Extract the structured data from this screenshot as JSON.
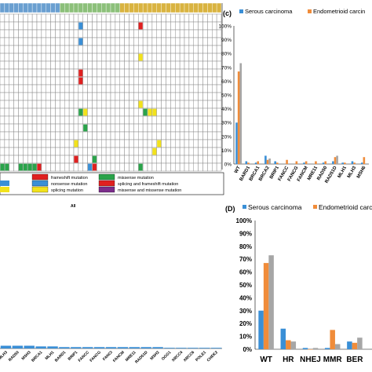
{
  "colors": {
    "serous": "#3a8fd6",
    "endometrioid": "#f08c3a",
    "wt_third": "#a6a6a6",
    "red": "#e02020",
    "green": "#2aa34a",
    "blue": "#3a8fd6",
    "yellow": "#f2e21c",
    "purple": "#7b2d8b",
    "bar_top_blue": "#6a9fd0",
    "bar_top_green": "#8cc07a",
    "bar_top_gold": "#d9b340"
  },
  "legend": {
    "items": [
      {
        "label": "frameshift mutation",
        "color": "red"
      },
      {
        "label": "missense mutation",
        "color": "green"
      },
      {
        "label": "nonsense mutation",
        "color": "blue"
      },
      {
        "label": "splicing and frameshift mutation",
        "color": "red"
      },
      {
        "label": "splicing mutation",
        "color": "yellow"
      },
      {
        "label": "missense and missense mutation",
        "color": "purple"
      }
    ]
  },
  "heatmap_marks": [
    {
      "col": 17,
      "row": 1,
      "color": "blue"
    },
    {
      "col": 17,
      "row": 3,
      "color": "blue"
    },
    {
      "col": 30,
      "row": 1,
      "color": "red"
    },
    {
      "col": 30,
      "row": 5,
      "color": "yellow"
    },
    {
      "col": 17,
      "row": 7,
      "color": "red"
    },
    {
      "col": 17,
      "row": 8,
      "color": "red"
    },
    {
      "col": 17,
      "row": 12,
      "color": "green"
    },
    {
      "col": 18,
      "row": 12,
      "color": "yellow"
    },
    {
      "col": 31,
      "row": 12,
      "color": "green"
    },
    {
      "col": 32,
      "row": 12,
      "color": "yellow"
    },
    {
      "col": 33,
      "row": 12,
      "color": "yellow"
    },
    {
      "col": 30,
      "row": 11,
      "color": "yellow"
    },
    {
      "col": 18,
      "row": 14,
      "color": "green"
    },
    {
      "col": 16,
      "row": 16,
      "color": "yellow"
    },
    {
      "col": 34,
      "row": 16,
      "color": "yellow"
    },
    {
      "col": 33,
      "row": 17,
      "color": "yellow"
    },
    {
      "col": 16,
      "row": 18,
      "color": "red"
    },
    {
      "col": 19,
      "row": 19,
      "color": "blue"
    },
    {
      "col": 20,
      "row": 19,
      "color": "red"
    },
    {
      "col": 20,
      "row": 18,
      "color": "green"
    },
    {
      "col": 30,
      "row": 19,
      "color": "green"
    },
    {
      "col": 0,
      "row": 19,
      "color": "green"
    },
    {
      "col": 1,
      "row": 19,
      "color": "green"
    },
    {
      "col": 4,
      "row": 19,
      "color": "green"
    },
    {
      "col": 5,
      "row": 19,
      "color": "green"
    },
    {
      "col": 6,
      "row": 19,
      "color": "green"
    },
    {
      "col": 7,
      "row": 19,
      "color": "green"
    },
    {
      "col": 8,
      "row": 19,
      "color": "red"
    }
  ],
  "chart_data": [
    {
      "panel": "c",
      "type": "bar",
      "categories": [
        "WT",
        "BARD1",
        "BRCA1",
        "BRCA2",
        "BRIP1",
        "FANCC",
        "FANCG",
        "FANCM",
        "MRE11",
        "RAD50",
        "RAD51D",
        "MLH1",
        "MLH3",
        "MSH6"
      ],
      "series": [
        {
          "name": "Serous carcinoma",
          "values": [
            30,
            2,
            1,
            6,
            2,
            0,
            0,
            1,
            0,
            1,
            2,
            1,
            2,
            1
          ]
        },
        {
          "name": "Endometrioid carcinoma",
          "values": [
            67,
            1,
            2,
            3,
            1,
            3,
            2,
            2,
            2,
            2,
            5,
            1,
            1,
            5
          ]
        },
        {
          "name": "",
          "values": [
            73,
            0,
            0,
            4,
            0,
            0,
            0,
            0,
            0,
            0,
            6,
            0,
            0,
            0
          ]
        }
      ],
      "ylim": [
        0,
        100
      ],
      "yticks": [
        "0%",
        "10%",
        "20%",
        "30%",
        "40%",
        "50%",
        "60%",
        "70%",
        "80%",
        "90%",
        "100%"
      ],
      "ytick_labels_visible": [
        "WT",
        "BARD1",
        "BRCA1",
        "BRCA2",
        "BRIP1",
        "FANCC",
        "FANCG",
        "FANCM",
        "MRE11",
        "RAD50",
        "RAD51D",
        "MLH1",
        "MLH3",
        "MSH"
      ]
    },
    {
      "panel": "d",
      "type": "bar",
      "categories": [
        "WT",
        "HR",
        "NHEJ",
        "MMR",
        "BER"
      ],
      "series": [
        {
          "name": "Serous carcinoma",
          "values": [
            30,
            16,
            1,
            1,
            6
          ]
        },
        {
          "name": "Endometrioid carcinoma",
          "values": [
            67,
            7,
            0,
            15,
            5
          ]
        },
        {
          "name": "",
          "values": [
            73,
            6,
            1,
            4,
            9
          ]
        }
      ],
      "ylim": [
        0,
        100
      ],
      "yticks": [
        "0%",
        "10%",
        "20%",
        "30%",
        "40%",
        "50%",
        "60%",
        "70%",
        "80%",
        "90%",
        "100%"
      ]
    },
    {
      "panel": "all",
      "type": "bar",
      "title": "All",
      "categories": [
        "MLH3",
        "RAD50",
        "MSH3",
        "BRCA1",
        "MLH1",
        "BARD1",
        "BRIP1",
        "FANCC",
        "FANCG",
        "FANCI",
        "FANCM",
        "MRE11",
        "RAD51D",
        "MSH2",
        "OGG1",
        "XRCC4",
        "XRCC6",
        "POLE1",
        "CHEK2"
      ],
      "values": [
        2,
        2,
        2,
        1.5,
        1.5,
        1,
        1,
        1,
        1,
        1,
        1,
        1,
        1,
        1,
        0.5,
        0.5,
        0.5,
        0.5,
        0.5
      ],
      "ylim": [
        0,
        100
      ]
    }
  ],
  "labels": {
    "c_panel": "(c)",
    "d_panel": "(D)",
    "serous": "Serous carcinoma",
    "endometrioid": "Endometrioid carcinoma",
    "endometrioid_d": "Endometrioid carcin",
    "endometrioid_c": "Endometrioid carcin",
    "all_title": "All"
  }
}
